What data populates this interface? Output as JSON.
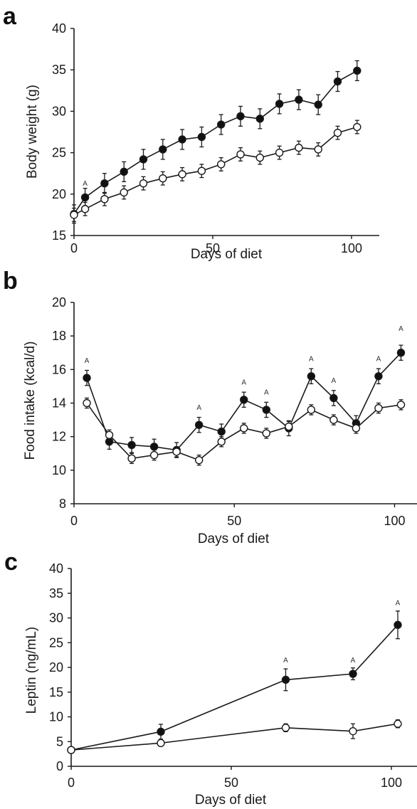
{
  "chart_data": [
    {
      "panel": "a",
      "type": "line",
      "xlabel": "Days of diet",
      "ylabel": "Body weight (g)",
      "xlim": [
        0,
        110
      ],
      "ylim": [
        15,
        40
      ],
      "xticks": [
        0,
        50,
        100
      ],
      "yticks": [
        15,
        20,
        25,
        30,
        35,
        40
      ],
      "grid": false,
      "series": [
        {
          "marker": "filled-circle",
          "x": [
            0,
            4,
            11,
            18,
            25,
            32,
            39,
            46,
            53,
            60,
            67,
            74,
            81,
            88,
            95,
            102
          ],
          "y": [
            17.6,
            19.6,
            21.3,
            22.7,
            24.2,
            25.4,
            26.6,
            26.9,
            28.4,
            29.4,
            29.1,
            30.9,
            31.4,
            30.8,
            33.6,
            34.9
          ],
          "err": [
            1.1,
            1.1,
            1.2,
            1.2,
            1.2,
            1.2,
            1.2,
            1.2,
            1.2,
            1.2,
            1.2,
            1.2,
            1.2,
            1.2,
            1.2,
            1.2
          ]
        },
        {
          "marker": "open-circle",
          "x": [
            0,
            4,
            11,
            18,
            25,
            32,
            39,
            46,
            53,
            60,
            67,
            74,
            81,
            88,
            95,
            102
          ],
          "y": [
            17.5,
            18.2,
            19.4,
            20.2,
            21.3,
            21.9,
            22.4,
            22.8,
            23.6,
            24.8,
            24.4,
            25.0,
            25.6,
            25.4,
            27.4,
            28.1
          ],
          "err": [
            0.8,
            0.8,
            0.8,
            0.8,
            0.8,
            0.8,
            0.8,
            0.8,
            0.8,
            0.8,
            0.8,
            0.8,
            0.8,
            0.8,
            0.8,
            0.8
          ]
        }
      ],
      "annotations": [
        {
          "text": "A",
          "x": 4,
          "y": 21.0
        }
      ]
    },
    {
      "panel": "b",
      "type": "line",
      "xlabel": "Days of diet",
      "ylabel": "Food intake (kcal/d)",
      "xlim": [
        0,
        107
      ],
      "ylim": [
        8,
        20
      ],
      "xticks": [
        0,
        50,
        100
      ],
      "yticks": [
        8,
        10,
        12,
        14,
        16,
        18,
        20
      ],
      "grid": false,
      "series": [
        {
          "marker": "filled-circle",
          "x": [
            4,
            11,
            18,
            25,
            32,
            39,
            46,
            53,
            60,
            67,
            74,
            81,
            88,
            95,
            102
          ],
          "y": [
            15.5,
            11.7,
            11.5,
            11.4,
            11.2,
            12.7,
            12.3,
            14.2,
            13.6,
            12.5,
            15.6,
            14.3,
            12.8,
            15.6,
            17.0
          ],
          "err": [
            0.45,
            0.45,
            0.45,
            0.45,
            0.45,
            0.45,
            0.45,
            0.45,
            0.45,
            0.45,
            0.45,
            0.45,
            0.45,
            0.45,
            0.45
          ]
        },
        {
          "marker": "open-circle",
          "x": [
            4,
            11,
            18,
            25,
            32,
            39,
            46,
            53,
            60,
            67,
            74,
            81,
            88,
            95,
            102
          ],
          "y": [
            14.0,
            12.1,
            10.7,
            10.9,
            11.1,
            10.6,
            11.7,
            12.5,
            12.2,
            12.6,
            13.6,
            13.0,
            12.5,
            13.7,
            13.9
          ],
          "err": [
            0.3,
            0.3,
            0.3,
            0.3,
            0.3,
            0.3,
            0.3,
            0.3,
            0.3,
            0.3,
            0.3,
            0.3,
            0.3,
            0.3,
            0.3
          ]
        }
      ],
      "annotations": [
        {
          "text": "A",
          "x": 4,
          "y": 16.4
        },
        {
          "text": "A",
          "x": 39,
          "y": 13.6
        },
        {
          "text": "A",
          "x": 53,
          "y": 15.1
        },
        {
          "text": "A",
          "x": 60,
          "y": 14.5
        },
        {
          "text": "A",
          "x": 74,
          "y": 16.5
        },
        {
          "text": "A",
          "x": 81,
          "y": 15.2
        },
        {
          "text": "A",
          "x": 95,
          "y": 16.5
        },
        {
          "text": "A",
          "x": 102,
          "y": 18.3
        }
      ]
    },
    {
      "panel": "c",
      "type": "line",
      "xlabel": "Days of diet",
      "ylabel": "Leptin (ng/mL)",
      "xlim": [
        0,
        108
      ],
      "ylim": [
        0,
        40
      ],
      "xticks": [
        0,
        50,
        100
      ],
      "yticks": [
        0,
        5,
        10,
        15,
        20,
        25,
        30,
        35,
        40
      ],
      "grid": false,
      "series": [
        {
          "marker": "filled-circle",
          "x": [
            0,
            28,
            67,
            88,
            102
          ],
          "y": [
            3.3,
            7.0,
            17.5,
            18.7,
            28.6
          ],
          "err": [
            0.4,
            1.5,
            2.2,
            1.2,
            2.8
          ]
        },
        {
          "marker": "open-circle",
          "x": [
            0,
            28,
            67,
            88,
            102
          ],
          "y": [
            3.3,
            4.7,
            7.8,
            7.1,
            8.6
          ],
          "err": [
            0.4,
            0.6,
            0.8,
            1.5,
            0.8
          ]
        }
      ],
      "annotations": [
        {
          "text": "A",
          "x": 67,
          "y": 21.0
        },
        {
          "text": "A",
          "x": 88,
          "y": 21.0
        },
        {
          "text": "A",
          "x": 102,
          "y": 32.6
        }
      ]
    }
  ],
  "colors": {
    "ink": "#1a1a1a",
    "open_fill": "#ffffff",
    "filled": "#111111"
  }
}
